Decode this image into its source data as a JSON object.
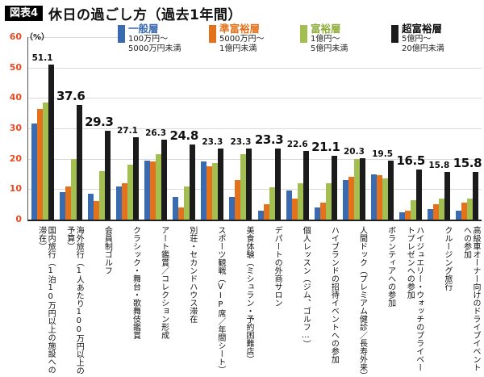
{
  "header": {
    "badge": "図表4",
    "title": "休日の過ごし方（過去1年間）"
  },
  "y_axis": {
    "unit": "（%）",
    "ticks": [
      60,
      50,
      40,
      30,
      20,
      10,
      0
    ],
    "tick_color": "#e84a23"
  },
  "legend": {
    "items": [
      {
        "name": "一般層",
        "range1": "100万円〜",
        "range2": "5000万円未満",
        "color": "#3a6bb0",
        "text_color": "#3a6bb0"
      },
      {
        "name": "準富裕層",
        "range1": "5000万円〜",
        "range2": "1億円未満",
        "color": "#e4721c",
        "text_color": "#e4721c"
      },
      {
        "name": "富裕層",
        "range1": "1億円〜",
        "range2": "5億円未満",
        "color": "#a3bf51",
        "text_color": "#8fae3c"
      },
      {
        "name": "超富裕層",
        "range1": "5億円〜",
        "range2": "20億円未満",
        "color": "#1b1b1b",
        "text_color": "#111111"
      }
    ]
  },
  "chart_data": {
    "type": "bar",
    "title": "休日の過ごし方（過去1年間）",
    "ylabel": "%",
    "ylim": [
      0,
      60
    ],
    "grid": true,
    "legend_position": "top",
    "categories": [
      "国内旅行（1泊10万円以上の施設への滞在）",
      "海外旅行（1人あたり100万円以上の予算）",
      "会員制ゴルフ",
      "クラシック・舞台・歌舞伎鑑賞",
      "アート鑑賞／コレクション形成",
      "別荘・セカンドハウス滞在",
      "スポーツ観戦（VIP席／年間シート）",
      "美食体験（ミシュラン・予約困難店）",
      "デパートの外商サロン",
      "個人レッスン（ジム、ゴルフ…）",
      "ハイブランドの招待イベントへの参加",
      "人間ドック（プレミアム健診／長寿外来）",
      "ボランティアへの参加",
      "ハイジュエリー・ウォッチのプライベートプレゼンへの参加",
      "クルージング旅行",
      "高級車オーナー向けのドライブイベントへの参加"
    ],
    "series": [
      {
        "key": "general",
        "name": "一般層（100万円〜5000万円未満）",
        "color": "#3a6bb0",
        "values": [
          31.5,
          9,
          8.5,
          11,
          19.5,
          7.5,
          19,
          7.5,
          3,
          9.5,
          4,
          13,
          15,
          2.5,
          3.5,
          3
        ]
      },
      {
        "key": "semi-wealthy",
        "name": "準富裕層（5000万円〜1億円未満）",
        "color": "#e4721c",
        "values": [
          36.5,
          11,
          6,
          12,
          19,
          4,
          17.5,
          13,
          5,
          7,
          5.5,
          14,
          14.5,
          3,
          5,
          5.5
        ]
      },
      {
        "key": "wealthy",
        "name": "富裕層（1億円〜5億円未満）",
        "color": "#a3bf51",
        "values": [
          38.5,
          20,
          16,
          18,
          21.5,
          11,
          18.5,
          21.5,
          10.5,
          12,
          12,
          20,
          13.5,
          6.5,
          7,
          7
        ]
      },
      {
        "key": "ultra-wealthy",
        "name": "超富裕層（5億円〜20億円未満）",
        "color": "#1b1b1b",
        "values": [
          51.1,
          37.6,
          29.3,
          27.1,
          26.3,
          24.8,
          23.3,
          23.3,
          23.3,
          22.6,
          21.1,
          20.3,
          19.5,
          16.5,
          15.8,
          15.8
        ]
      }
    ],
    "top_labels": [
      {
        "value": "51.1",
        "big": false
      },
      {
        "value": "37.6",
        "big": true
      },
      {
        "value": "29.3",
        "big": true
      },
      {
        "value": "27.1",
        "big": false
      },
      {
        "value": "26.3",
        "big": false
      },
      {
        "value": "24.8",
        "big": true
      },
      {
        "value": "23.3",
        "big": false
      },
      {
        "value": "23.3",
        "big": false
      },
      {
        "value": "23.3",
        "big": true
      },
      {
        "value": "22.6",
        "big": false
      },
      {
        "value": "21.1",
        "big": true
      },
      {
        "value": "20.3",
        "big": false
      },
      {
        "value": "19.5",
        "big": false
      },
      {
        "value": "16.5",
        "big": true
      },
      {
        "value": "15.8",
        "big": false
      },
      {
        "value": "15.8",
        "big": true
      }
    ]
  }
}
